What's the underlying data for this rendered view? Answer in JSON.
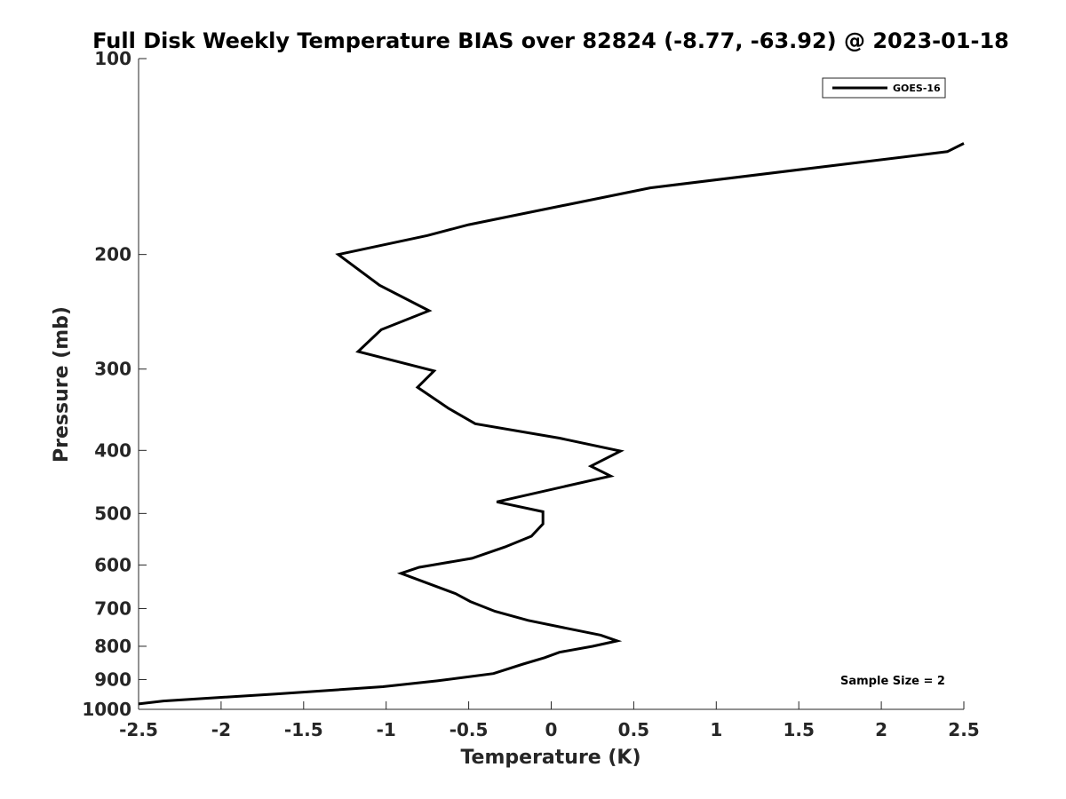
{
  "chart_data": {
    "type": "line",
    "title": "Full Disk Weekly Temperature BIAS over 82824 (-8.77, -63.92) @ 2023-01-18",
    "xlabel": "Temperature (K)",
    "ylabel": "Pressure (mb)",
    "xlim": [
      -2.5,
      2.5
    ],
    "ylim": [
      100,
      1000
    ],
    "y_scale": "log",
    "y_reversed": true,
    "x_ticks": [
      -2.5,
      -2,
      -1.5,
      -1,
      -0.5,
      0,
      0.5,
      1,
      1.5,
      2,
      2.5
    ],
    "x_tick_labels": [
      "-2.5",
      "-2",
      "-1.5",
      "-1",
      "-0.5",
      "0",
      "0.5",
      "1",
      "1.5",
      "2",
      "2.5"
    ],
    "y_ticks": [
      100,
      200,
      300,
      400,
      500,
      600,
      700,
      800,
      900,
      1000
    ],
    "y_tick_labels": [
      "100",
      "200",
      "300",
      "400",
      "500",
      "600",
      "700",
      "800",
      "900",
      "1000"
    ],
    "grid": false,
    "legend_position": "top-right",
    "annotation": "Sample Size = 2",
    "series": [
      {
        "name": "GOES-16",
        "color": "#000000",
        "points": [
          {
            "x": 2.5,
            "y": 135
          },
          {
            "x": 2.4,
            "y": 139
          },
          {
            "x": 0.6,
            "y": 158
          },
          {
            "x": -0.5,
            "y": 180
          },
          {
            "x": -0.75,
            "y": 187
          },
          {
            "x": -1.29,
            "y": 200
          },
          {
            "x": -1.04,
            "y": 223
          },
          {
            "x": -0.74,
            "y": 244
          },
          {
            "x": -1.03,
            "y": 261
          },
          {
            "x": -1.17,
            "y": 282
          },
          {
            "x": -0.71,
            "y": 302
          },
          {
            "x": -0.81,
            "y": 320
          },
          {
            "x": -0.62,
            "y": 345
          },
          {
            "x": -0.46,
            "y": 364
          },
          {
            "x": 0.05,
            "y": 383
          },
          {
            "x": 0.42,
            "y": 401
          },
          {
            "x": 0.24,
            "y": 423
          },
          {
            "x": 0.36,
            "y": 438
          },
          {
            "x": -0.33,
            "y": 480
          },
          {
            "x": -0.05,
            "y": 497
          },
          {
            "x": -0.05,
            "y": 519
          },
          {
            "x": -0.12,
            "y": 542
          },
          {
            "x": -0.28,
            "y": 563
          },
          {
            "x": -0.48,
            "y": 586
          },
          {
            "x": -0.8,
            "y": 605
          },
          {
            "x": -0.91,
            "y": 618
          },
          {
            "x": -0.58,
            "y": 664
          },
          {
            "x": -0.49,
            "y": 683
          },
          {
            "x": -0.34,
            "y": 707
          },
          {
            "x": -0.14,
            "y": 730
          },
          {
            "x": 0.12,
            "y": 753
          },
          {
            "x": 0.3,
            "y": 769
          },
          {
            "x": 0.4,
            "y": 785
          },
          {
            "x": 0.25,
            "y": 800
          },
          {
            "x": 0.05,
            "y": 817
          },
          {
            "x": -0.04,
            "y": 833
          },
          {
            "x": -0.17,
            "y": 852
          },
          {
            "x": -0.35,
            "y": 881
          },
          {
            "x": -0.69,
            "y": 904
          },
          {
            "x": -1.02,
            "y": 923
          },
          {
            "x": -1.67,
            "y": 947
          },
          {
            "x": -2.35,
            "y": 971
          },
          {
            "x": -2.5,
            "y": 981
          }
        ]
      }
    ]
  }
}
